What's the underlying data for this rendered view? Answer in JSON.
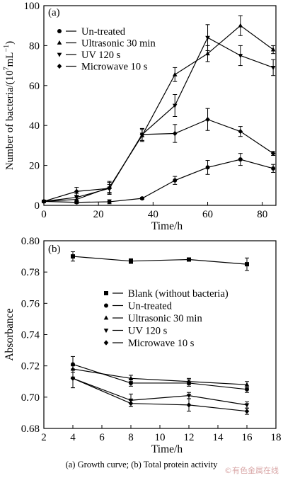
{
  "caption": "(a) Growth curve; (b) Total protein activity",
  "watermark": "©有色金属在线",
  "chart_data": [
    {
      "type": "line",
      "panel_label": "(a)",
      "xlabel": "Time/h",
      "ylabel_prefix": "Number of bacteria/(10",
      "ylabel_sup1": "7",
      "ylabel_mid": "mL",
      "ylabel_sup2": "−1",
      "ylabel_suffix": ")",
      "xlim": [
        0,
        85
      ],
      "ylim": [
        0,
        100
      ],
      "xticks": [
        0,
        20,
        40,
        60,
        80
      ],
      "yticks": [
        0,
        20,
        40,
        60,
        80,
        100
      ],
      "legend_position": "top-left",
      "series": [
        {
          "name": "Un-treated",
          "marker": "circle",
          "x": [
            0,
            12,
            24,
            36,
            48,
            60,
            72,
            84
          ],
          "y": [
            2,
            1.5,
            1.8,
            3.5,
            12.5,
            19,
            23,
            18.5
          ],
          "err": [
            0.5,
            0.5,
            1,
            0.5,
            2,
            3.5,
            3,
            2
          ]
        },
        {
          "name": "Ultrasonic 30 min",
          "marker": "triangle-up",
          "x": [
            0,
            12,
            24,
            36,
            48,
            60,
            72,
            84
          ],
          "y": [
            2,
            3,
            9,
            35,
            65.5,
            76,
            90,
            78
          ],
          "err": [
            0.5,
            2,
            3,
            3,
            3.5,
            4,
            5,
            2
          ]
        },
        {
          "name": "UV 120 s",
          "marker": "triangle-down",
          "x": [
            0,
            12,
            24,
            36,
            48,
            60,
            72,
            84
          ],
          "y": [
            2,
            4,
            8.5,
            35.5,
            50,
            84,
            75,
            69
          ],
          "err": [
            0.5,
            2,
            2,
            3,
            5.5,
            6.5,
            5,
            4
          ]
        },
        {
          "name": "Microwave 10 s",
          "marker": "diamond",
          "x": [
            0,
            12,
            24,
            36,
            48,
            60,
            72,
            84
          ],
          "y": [
            2,
            7,
            8.5,
            35.5,
            36,
            43,
            37,
            26
          ],
          "err": [
            0.5,
            2,
            3,
            3,
            4.5,
            5.5,
            2.5,
            1
          ]
        }
      ]
    },
    {
      "type": "line",
      "panel_label": "(b)",
      "xlabel": "Time/h",
      "ylabel": "Absorbance",
      "xlim": [
        2,
        18
      ],
      "ylim": [
        0.68,
        0.8
      ],
      "xticks": [
        2,
        4,
        6,
        8,
        10,
        12,
        14,
        16,
        18
      ],
      "yticks": [
        "0.68",
        "0.70",
        "0.72",
        "0.74",
        "0.76",
        "0.78",
        "0.80"
      ],
      "legend_position": "center-right",
      "series": [
        {
          "name": "Blank (without bacteria)",
          "marker": "square",
          "x": [
            4,
            8,
            12,
            16
          ],
          "y": [
            0.79,
            0.787,
            0.788,
            0.785
          ],
          "err": [
            0.003,
            0.0015,
            0.0008,
            0.004
          ]
        },
        {
          "name": "Un-treated",
          "marker": "circle",
          "x": [
            4,
            8,
            12,
            16
          ],
          "y": [
            0.721,
            0.709,
            0.709,
            0.705
          ],
          "err": [
            0.005,
            0.002,
            0.002,
            0.002
          ]
        },
        {
          "name": "Ultrasonic 30 min",
          "marker": "triangle-up",
          "x": [
            4,
            8,
            12,
            16
          ],
          "y": [
            0.718,
            0.712,
            0.71,
            0.708
          ],
          "err": [
            0.002,
            0.002,
            0.002,
            0.002
          ]
        },
        {
          "name": "UV 120 s",
          "marker": "triangle-down",
          "x": [
            4,
            8,
            12,
            16
          ],
          "y": [
            0.712,
            0.698,
            0.701,
            0.695
          ],
          "err": [
            0.006,
            0.004,
            0.002,
            0.002
          ]
        },
        {
          "name": "Microwave 10 s",
          "marker": "diamond",
          "x": [
            4,
            8,
            12,
            16
          ],
          "y": [
            0.712,
            0.696,
            0.695,
            0.691
          ],
          "err": [
            0.006,
            0.002,
            0.004,
            0.002
          ]
        }
      ]
    }
  ]
}
